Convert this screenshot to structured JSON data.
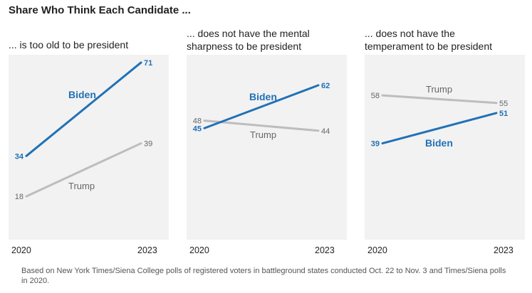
{
  "title": "Share Who Think Each Candidate ...",
  "source": "Based on New York Times/Siena College polls of registered voters in battleground states conducted Oct. 22 to Nov. 3 and Times/Siena polls in 2020.",
  "colors": {
    "biden": "#2171b5",
    "trump": "#bdbdbd",
    "panel_bg": "#f2f2f2"
  },
  "chart_data": [
    {
      "type": "line",
      "subtitle_lines": [
        "... is too old to be president"
      ],
      "x": [
        "2020",
        "2023"
      ],
      "ylim": [
        0,
        100
      ],
      "series": [
        {
          "name": "Biden",
          "values": [
            34,
            71
          ]
        },
        {
          "name": "Trump",
          "values": [
            18,
            39
          ]
        }
      ]
    },
    {
      "type": "line",
      "subtitle_lines": [
        "... does not have the mental",
        "sharpness to be president"
      ],
      "x": [
        "2020",
        "2023"
      ],
      "ylim": [
        0,
        100
      ],
      "series": [
        {
          "name": "Biden",
          "values": [
            45,
            62
          ]
        },
        {
          "name": "Trump",
          "values": [
            48,
            44
          ]
        }
      ]
    },
    {
      "type": "line",
      "subtitle_lines": [
        "... does not have the",
        "temperament to be president"
      ],
      "x": [
        "2020",
        "2023"
      ],
      "ylim": [
        0,
        100
      ],
      "series": [
        {
          "name": "Biden",
          "values": [
            39,
            51
          ]
        },
        {
          "name": "Trump",
          "values": [
            58,
            55
          ]
        }
      ]
    }
  ]
}
